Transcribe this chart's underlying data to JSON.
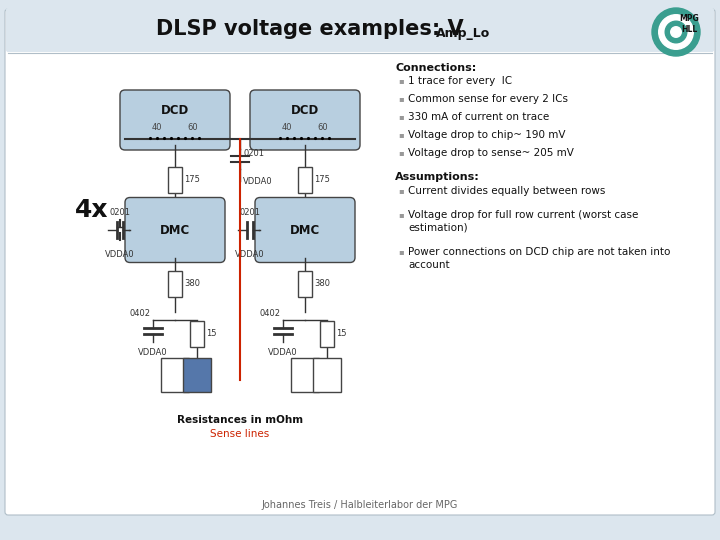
{
  "title_main": "DLSP voltage examples: V",
  "title_sub": "Amp_Lo",
  "background_color": "#dce6ee",
  "panel_bg": "#ffffff",
  "header_bg": "#dce6ee",
  "connections_title": "Connections:",
  "connections_bullets": [
    "1 trace for every  IC",
    "Common sense for every 2 ICs",
    "330 mA of current on trace",
    "Voltage drop to chip~ 190 mV",
    "Voltage drop to sense~ 205 mV"
  ],
  "assumptions_title": "Assumptions:",
  "assumptions_bullets": [
    "Current divides equally between rows",
    "Voltage drop for full row current (worst case\nestimation)",
    "Power connections on DCD chip are not taken into\naccount"
  ],
  "footer": "Johannes Treis / Halbleiterlabor der MPG",
  "label_4x": "4x",
  "label_resistances": "Resistances in mOhm",
  "label_sense": "Sense lines",
  "box_fill": "#b8cfe0",
  "box_fill_dark": "#5577aa",
  "box_stroke": "#444444",
  "wire_color": "#333333",
  "sense_line_color": "#cc2200",
  "bullet_color": "#999999",
  "text_color": "#111111",
  "footer_color": "#666666"
}
